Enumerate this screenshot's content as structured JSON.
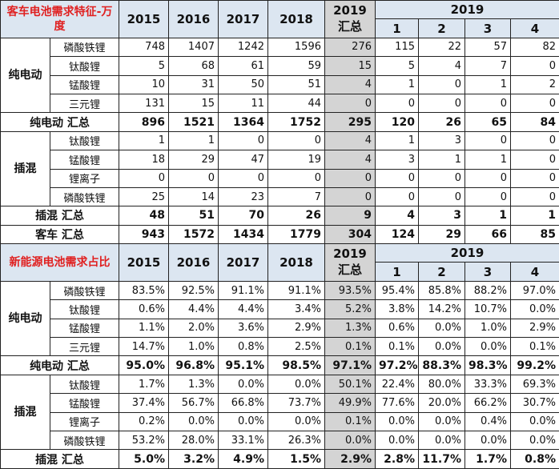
{
  "sections": [
    {
      "title": "客车电池需求特征-万度",
      "years": [
        "2015",
        "2016",
        "2017",
        "2018"
      ],
      "summary_year": "2019",
      "summary_label": "汇总",
      "quarter_year": "2019",
      "quarters": [
        "1",
        "2",
        "3",
        "4"
      ],
      "groups": [
        {
          "label": "纯电动",
          "rows": [
            {
              "name": "磷酸铁锂",
              "values": [
                "748",
                "1407",
                "1242",
                "1596",
                "276",
                "115",
                "22",
                "57",
                "82"
              ]
            },
            {
              "name": "钛酸锂",
              "values": [
                "5",
                "68",
                "61",
                "59",
                "15",
                "5",
                "4",
                "7",
                "0"
              ]
            },
            {
              "name": "锰酸锂",
              "values": [
                "10",
                "31",
                "50",
                "51",
                "4",
                "1",
                "0",
                "1",
                "2"
              ]
            },
            {
              "name": "三元锂",
              "values": [
                "131",
                "15",
                "11",
                "44",
                "0",
                "0",
                "0",
                "0",
                "0"
              ]
            }
          ],
          "total": {
            "label": "纯电动 汇总",
            "values": [
              "896",
              "1521",
              "1364",
              "1752",
              "295",
              "120",
              "26",
              "65",
              "84"
            ]
          }
        },
        {
          "label": "插混",
          "rows": [
            {
              "name": "钛酸锂",
              "values": [
                "1",
                "1",
                "0",
                "0",
                "4",
                "1",
                "3",
                "0",
                "0"
              ]
            },
            {
              "name": "锰酸锂",
              "values": [
                "18",
                "29",
                "47",
                "19",
                "4",
                "3",
                "1",
                "1",
                "0"
              ]
            },
            {
              "name": "锂离子",
              "values": [
                "0",
                "0",
                "0",
                "0",
                "0",
                "0",
                "0",
                "0",
                "0"
              ]
            },
            {
              "name": "磷酸铁锂",
              "values": [
                "25",
                "14",
                "23",
                "7",
                "0",
                "0",
                "0",
                "0",
                "0"
              ]
            }
          ],
          "total": {
            "label": "插混 汇总",
            "values": [
              "48",
              "51",
              "70",
              "26",
              "9",
              "4",
              "3",
              "1",
              "1"
            ]
          }
        }
      ],
      "grand_total": {
        "label": "客车 汇总",
        "values": [
          "943",
          "1572",
          "1434",
          "1779",
          "304",
          "124",
          "29",
          "66",
          "85"
        ]
      }
    },
    {
      "title": "新能源电池需求占比",
      "years": [
        "2015",
        "2016",
        "2017",
        "2018"
      ],
      "summary_year": "2019",
      "summary_label": "汇总",
      "quarter_year": "2019",
      "quarters": [
        "1",
        "2",
        "3",
        "4"
      ],
      "groups": [
        {
          "label": "纯电动",
          "rows": [
            {
              "name": "磷酸铁锂",
              "values": [
                "83.5%",
                "92.5%",
                "91.1%",
                "91.1%",
                "93.5%",
                "95.4%",
                "85.8%",
                "88.2%",
                "97.0%"
              ]
            },
            {
              "name": "钛酸锂",
              "values": [
                "0.6%",
                "4.4%",
                "4.4%",
                "3.4%",
                "5.2%",
                "3.8%",
                "14.2%",
                "10.7%",
                "0.0%"
              ]
            },
            {
              "name": "锰酸锂",
              "values": [
                "1.1%",
                "2.0%",
                "3.6%",
                "2.9%",
                "1.3%",
                "0.6%",
                "0.0%",
                "1.0%",
                "2.9%"
              ]
            },
            {
              "name": "三元锂",
              "values": [
                "14.7%",
                "1.0%",
                "0.8%",
                "2.5%",
                "0.1%",
                "0.1%",
                "0.0%",
                "0.0%",
                "0.1%"
              ]
            }
          ],
          "total": {
            "label": "纯电动 汇总",
            "values": [
              "95.0%",
              "96.8%",
              "95.1%",
              "98.5%",
              "97.1%",
              "97.2%",
              "88.3%",
              "98.3%",
              "99.2%"
            ]
          }
        },
        {
          "label": "插混",
          "rows": [
            {
              "name": "钛酸锂",
              "values": [
                "1.7%",
                "1.3%",
                "0.0%",
                "0.0%",
                "50.1%",
                "22.4%",
                "80.0%",
                "33.3%",
                "69.3%"
              ]
            },
            {
              "name": "锰酸锂",
              "values": [
                "37.4%",
                "56.7%",
                "66.8%",
                "73.7%",
                "49.9%",
                "77.6%",
                "20.0%",
                "66.2%",
                "30.7%"
              ]
            },
            {
              "name": "锂离子",
              "values": [
                "0.2%",
                "0.0%",
                "0.0%",
                "0.0%",
                "0.1%",
                "0.0%",
                "0.0%",
                "0.4%",
                "0.0%"
              ]
            },
            {
              "name": "磷酸铁锂",
              "values": [
                "53.2%",
                "28.0%",
                "33.1%",
                "26.3%",
                "0.0%",
                "0.0%",
                "0.0%",
                "0.0%",
                "0.0%"
              ]
            }
          ],
          "total": {
            "label": "插混 汇总",
            "values": [
              "5.0%",
              "3.2%",
              "4.9%",
              "1.5%",
              "2.9%",
              "2.8%",
              "11.7%",
              "1.7%",
              "0.8%"
            ]
          }
        }
      ]
    }
  ]
}
